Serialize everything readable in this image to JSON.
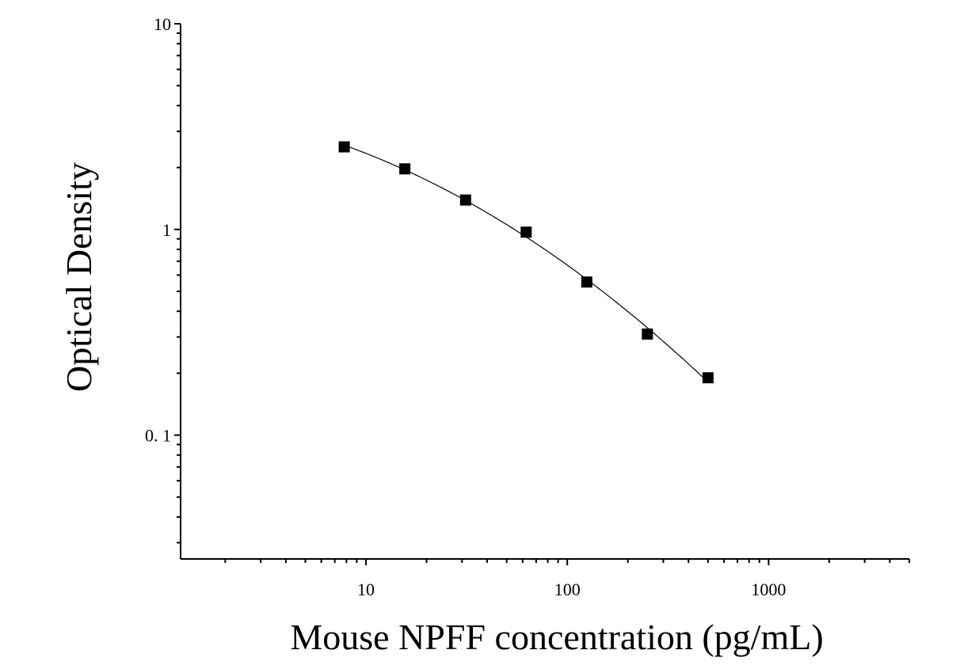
{
  "chart_data": {
    "type": "scatter",
    "x_scale": "log",
    "y_scale": "log",
    "xlabel": "Mouse NPFF concentration (pg/mL)",
    "ylabel": "Optical Density",
    "xlim": [
      1.2,
      5000
    ],
    "ylim": [
      0.025,
      10
    ],
    "x_ticks": [
      {
        "value": 10,
        "label": "10"
      },
      {
        "value": 100,
        "label": "100"
      },
      {
        "value": 1000,
        "label": "1000"
      }
    ],
    "y_ticks": [
      {
        "value": 10,
        "label": "10"
      },
      {
        "value": 1,
        "label": "1"
      },
      {
        "value": 0.1,
        "label": "0. 1"
      }
    ],
    "grid": false,
    "series": [
      {
        "marker": "square",
        "color": "#000000",
        "fit_curve": true,
        "x": [
          7.8,
          15.6,
          31.25,
          62.5,
          125,
          250,
          500
        ],
        "y": [
          2.52,
          1.97,
          1.39,
          0.97,
          0.555,
          0.31,
          0.19
        ]
      }
    ]
  }
}
